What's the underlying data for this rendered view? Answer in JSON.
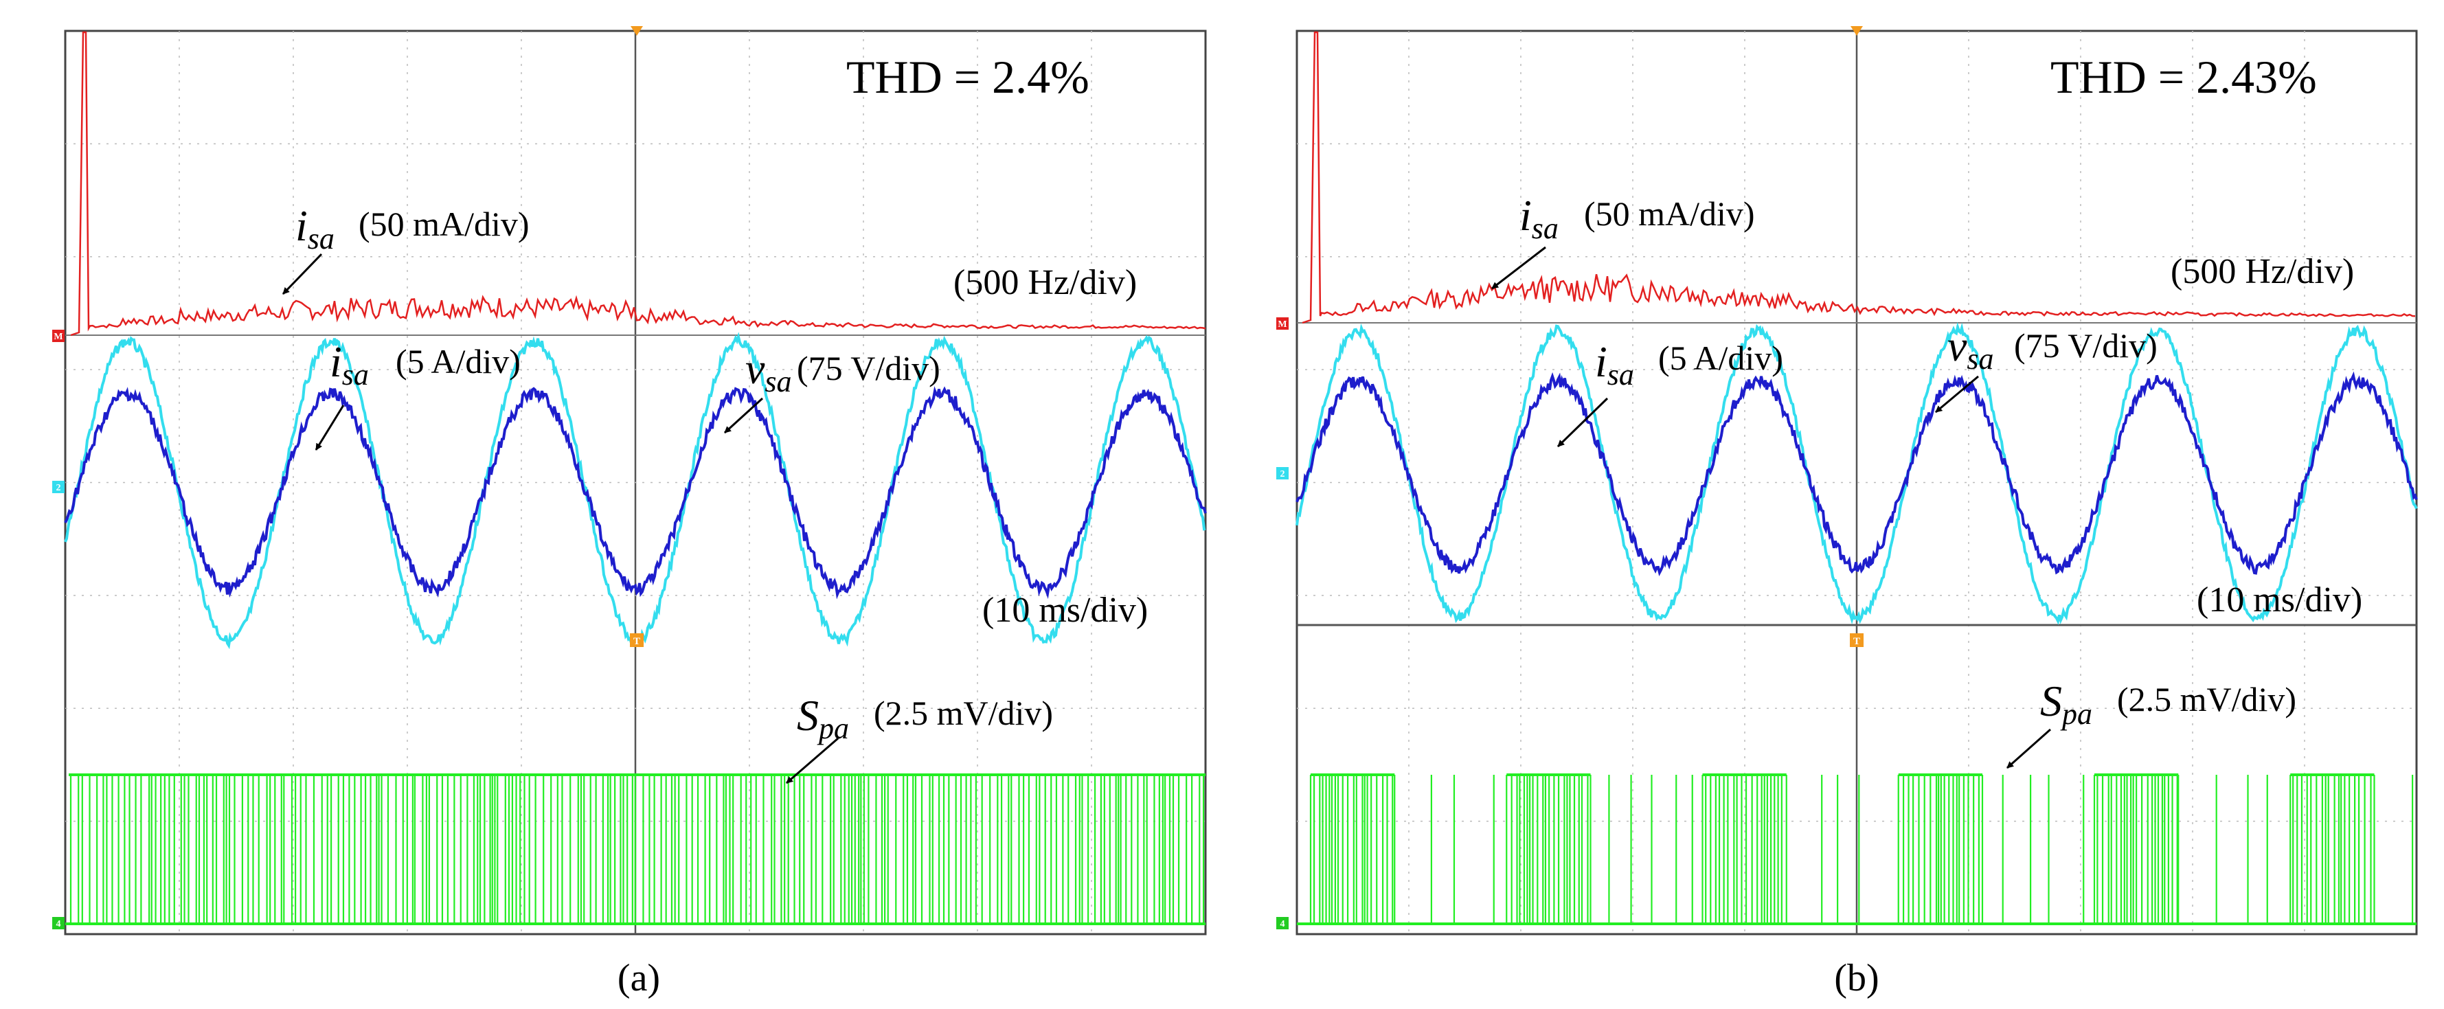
{
  "chart_data": [
    {
      "type": "line",
      "panel_label": "(a)",
      "title": "THD = 2.4%",
      "grid": true,
      "spectrum": {
        "label_symbol": "i",
        "label_sub": "sa",
        "label_scale": "(50 mA/div)",
        "x_scale": "(500 Hz/div)",
        "fundamental_peak_div": 2.7,
        "harmonic_envelope_div": [
          0.05,
          0.12,
          0.18,
          0.22,
          0.26,
          0.28,
          0.3,
          0.3,
          0.28,
          0.25,
          0.18,
          0.12,
          0.08,
          0.06,
          0.05,
          0.05,
          0.04,
          0.04,
          0.04,
          0.03
        ]
      },
      "waveforms": {
        "time_scale": "(10 ms/div)",
        "cycles": 5.6,
        "series": [
          {
            "name": "vsa",
            "label_symbol": "v",
            "label_sub": "sa",
            "label_scale": "(75 V/div)",
            "color": "#33DDEE",
            "amplitude_div": 1.32
          },
          {
            "name": "isa",
            "label_symbol": "i",
            "label_sub": "sa",
            "label_scale": "(5 A/div)",
            "color": "#1E1ECC",
            "amplitude_div": 0.86
          }
        ]
      },
      "switching": {
        "label_symbol": "S",
        "label_sub": "pa",
        "label_scale": "(2.5 mV/div)",
        "color": "#22EE22",
        "pattern": "dense"
      }
    },
    {
      "type": "line",
      "panel_label": "(b)",
      "title": "THD = 2.43%",
      "grid": true,
      "spectrum": {
        "label_symbol": "i",
        "label_sub": "sa",
        "label_scale": "(50 mA/div)",
        "x_scale": "(500 Hz/div)",
        "fundamental_peak_div": 2.7,
        "harmonic_envelope_div": [
          0.05,
          0.15,
          0.25,
          0.32,
          0.38,
          0.4,
          0.38,
          0.3,
          0.22,
          0.14,
          0.1,
          0.08,
          0.06,
          0.05,
          0.05,
          0.05,
          0.04,
          0.04,
          0.03,
          0.03
        ]
      },
      "waveforms": {
        "time_scale": "(10 ms/div)",
        "cycles": 5.6,
        "series": [
          {
            "name": "vsa",
            "label_symbol": "v",
            "label_sub": "sa",
            "label_scale": "(75 V/div)",
            "color": "#33DDEE",
            "amplitude_div": 1.32
          },
          {
            "name": "isa",
            "label_symbol": "i",
            "label_sub": "sa",
            "label_scale": "(5 A/div)",
            "color": "#1E1ECC",
            "amplitude_div": 0.86
          }
        ]
      },
      "switching": {
        "label_symbol": "S",
        "label_sub": "pa",
        "label_scale": "(2.5 mV/div)",
        "color": "#22EE22",
        "pattern": "blocks"
      }
    }
  ],
  "channel_markers": {
    "math": "M",
    "ch2": "2",
    "ch4": "4",
    "trigger": "T"
  }
}
